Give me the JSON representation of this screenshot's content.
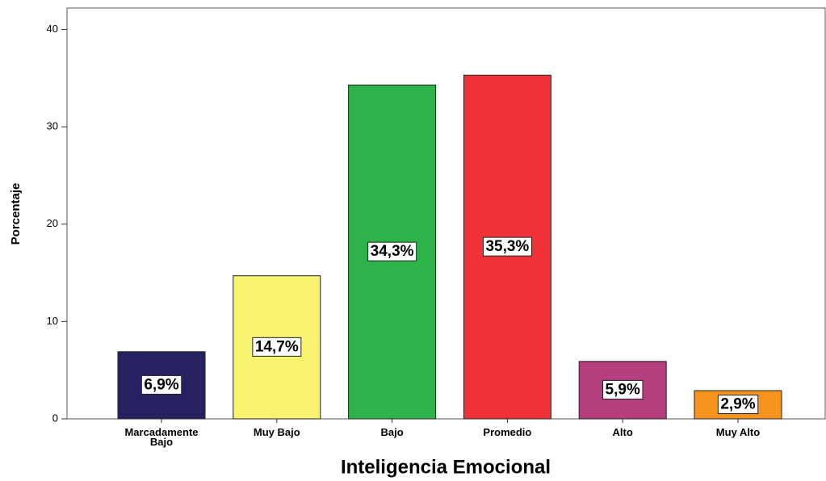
{
  "chart_data": {
    "type": "bar",
    "categories": [
      "Marcadamente Bajo",
      "Muy Bajo",
      "Bajo",
      "Promedio",
      "Alto",
      "Muy Alto"
    ],
    "values": [
      6.9,
      14.7,
      34.3,
      35.3,
      5.9,
      2.9
    ],
    "value_labels": [
      "6,9%",
      "14,7%",
      "34,3%",
      "35,3%",
      "5,9%",
      "2,9%"
    ],
    "colors": [
      "#262262",
      "#f8f36e",
      "#2db34a",
      "#ee3237",
      "#b53f7e",
      "#f7941d"
    ],
    "ylabel": "Porcentaje",
    "xlabel": "Inteligencia Emocional",
    "ylim": [
      0,
      42.2
    ],
    "yticks": [
      0,
      10,
      20,
      30,
      40
    ],
    "grid": false
  }
}
